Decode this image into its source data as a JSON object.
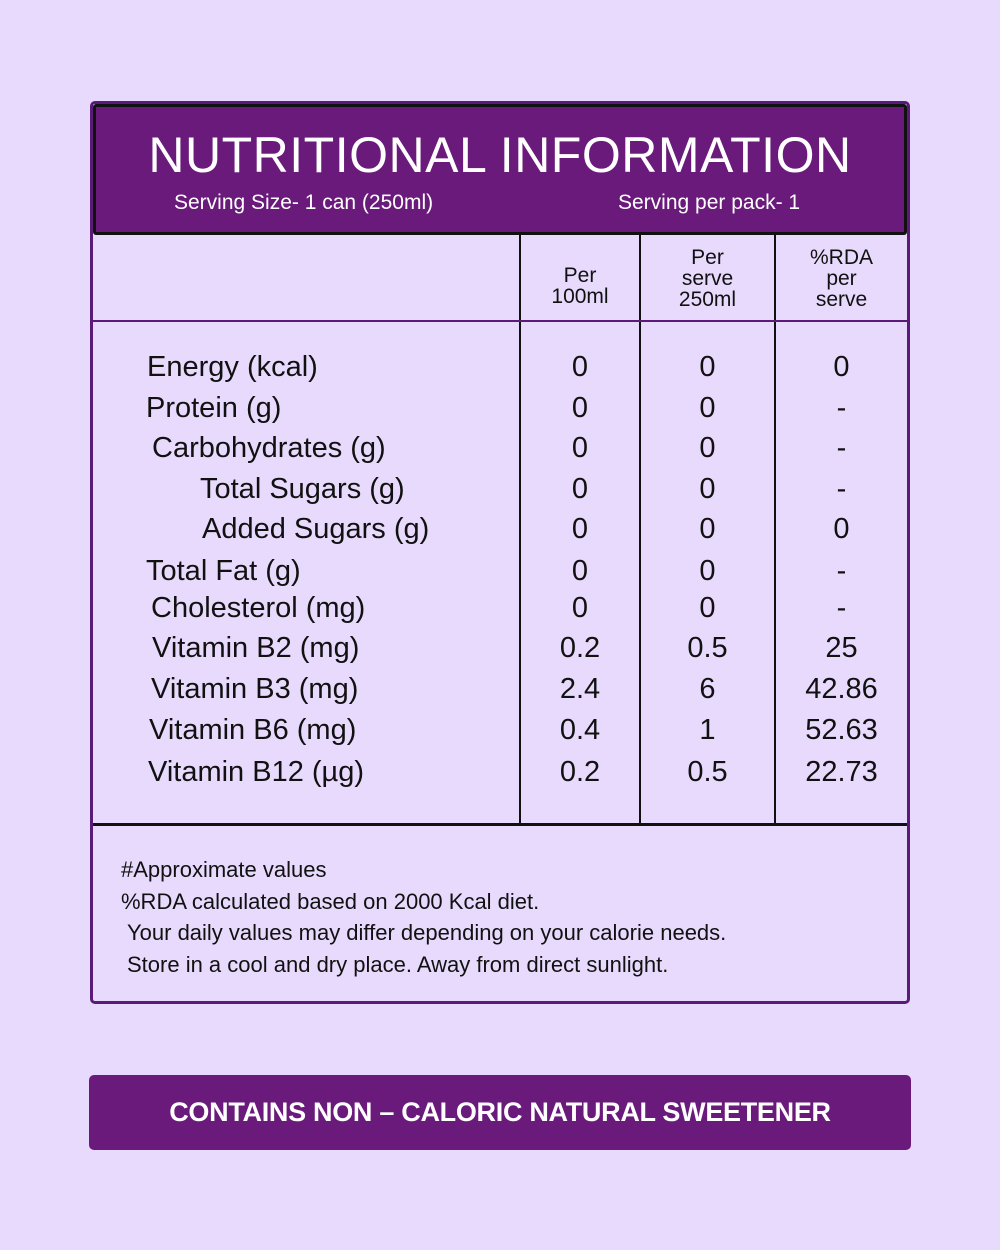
{
  "header": {
    "title": "NUTRITIONAL INFORMATION",
    "serving_size": "Serving Size- 1 can (250ml)",
    "serving_per_pack": "Serving per pack- 1"
  },
  "columns": [
    [
      "Per",
      "100ml"
    ],
    [
      "Per",
      "serve",
      "250ml"
    ],
    [
      "%RDA",
      "per",
      "serve"
    ]
  ],
  "rows": [
    {
      "label": "Energy (kcal)",
      "per100": "0",
      "perserve": "0",
      "rda": "0"
    },
    {
      "label": "Protein (g)",
      "per100": "0",
      "perserve": "0",
      "rda": "-"
    },
    {
      "label": "Carbohydrates (g)",
      "per100": "0",
      "perserve": "0",
      "rda": "-"
    },
    {
      "label": "Total Sugars (g)",
      "per100": "0",
      "perserve": "0",
      "rda": "-"
    },
    {
      "label": "Added Sugars (g)",
      "per100": "0",
      "perserve": "0",
      "rda": "0"
    },
    {
      "label": "Total Fat (g)",
      "per100": "0",
      "perserve": "0",
      "rda": "-"
    },
    {
      "label": "Cholesterol (mg)",
      "per100": "0",
      "perserve": "0",
      "rda": "-"
    },
    {
      "label": "Vitamin B2 (mg)",
      "per100": "0.2",
      "perserve": "0.5",
      "rda": "25"
    },
    {
      "label": "Vitamin B3 (mg)",
      "per100": "2.4",
      "perserve": "6",
      "rda": "42.86"
    },
    {
      "label": "Vitamin B6 (mg)",
      "per100": "0.4",
      "perserve": "1",
      "rda": "52.63"
    },
    {
      "label": "Vitamin B12 (µg)",
      "per100": "0.2",
      "perserve": "0.5",
      "rda": "22.73"
    }
  ],
  "notes": [
    "#Approximate values",
    "%RDA calculated based on 2000 Kcal diet.",
    "Your daily values may differ depending on your calorie needs.",
    "Store in a cool and dry place. Away from direct sunlight."
  ],
  "banner": "CONTAINS NON – CALORIC NATURAL SWEETENER",
  "colors": {
    "background": "#e8dafc",
    "header": "#6a1a7a",
    "border": "#5a1a78"
  }
}
